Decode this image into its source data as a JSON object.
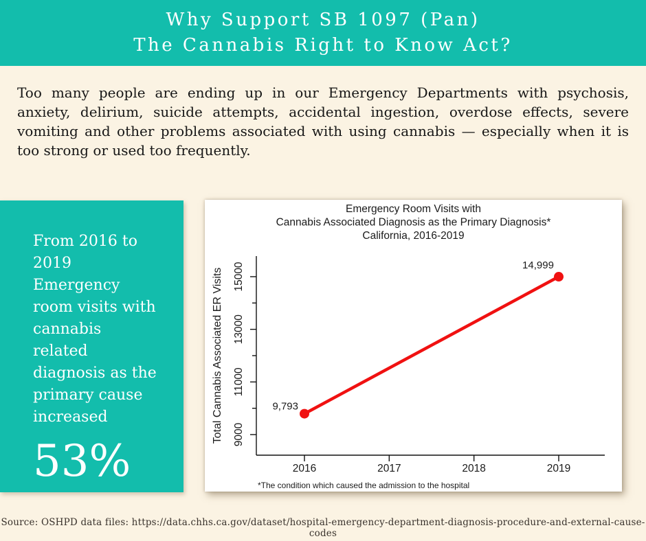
{
  "page": {
    "header": {
      "title_line1": "Why Support SB 1097 (Pan)",
      "title_line2": "The Cannabis Right to Know Act?"
    },
    "intro_paragraph": "Too many people are ending up in our Emergency Departments with psychosis, anxiety, delirium, suicide attempts, accidental ingestion, overdose effects, severe vomiting and other problems associated with using cannabis — especially when it is too strong or used too frequently.",
    "stat_callout": {
      "text": "From 2016 to 2019 Emergency room visits with cannabis related diagnosis as the primary cause increased",
      "value": "53%"
    },
    "source": "Source: OSHPD data files: https://data.chhs.ca.gov/dataset/hospital-emergency-department-diagnosis-procedure-and-external-cause-codes"
  },
  "colors": {
    "teal": "#13BDAC",
    "cream": "#FBF3E3",
    "line_red": "#F01111",
    "text_dark": "#1a1a1a",
    "white": "#ffffff"
  },
  "chart_data": {
    "type": "line",
    "title_lines": [
      "Emergency Room Visits with",
      "Cannabis Associated Diagnosis as the Primary Diagnosis*",
      "California, 2016-2019"
    ],
    "ylabel": "Total Cannabis Associated ER Visits",
    "xlabel": "",
    "x": [
      2016,
      2019
    ],
    "y": [
      9793,
      14999
    ],
    "point_labels": [
      "9,793",
      "14,999"
    ],
    "x_ticks": [
      2016,
      2017,
      2018,
      2019
    ],
    "y_ticks": [
      9000,
      11000,
      13000,
      15000
    ],
    "y_minor_ticks": [
      10000,
      12000,
      14000
    ],
    "xlim": [
      2016,
      2019
    ],
    "ylim": [
      8200,
      15800
    ],
    "grid": false,
    "legend": false,
    "line_color": "#F01111",
    "footnote": "*The condition which caused the admission to the hospital"
  }
}
